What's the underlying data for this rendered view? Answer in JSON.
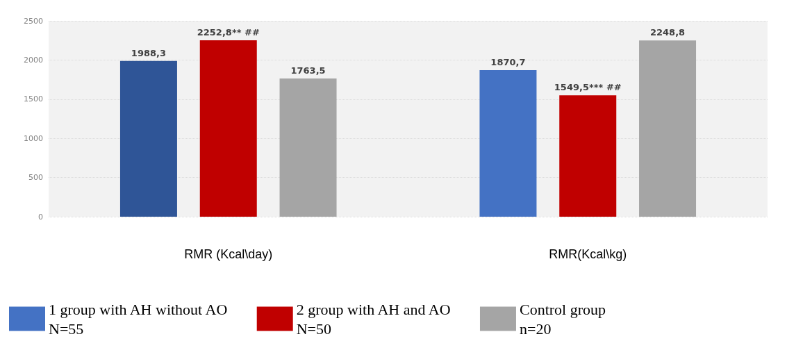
{
  "chart_data": {
    "type": "bar",
    "categories": [
      "RMR (Kcal\\day)",
      "RMR(Kcal\\kg)"
    ],
    "series": [
      {
        "name": "1 group with AH without AO\nN=55",
        "color": "#4472c4",
        "colors": [
          "#2f5597",
          "#4472c4"
        ],
        "values": [
          1988.3,
          1870.7
        ],
        "value_labels": [
          "1988,3",
          "1870,7"
        ]
      },
      {
        "name": "2 group with AH and AO\nN=50",
        "color": "#c00000",
        "values": [
          2252.8,
          1549.5
        ],
        "value_labels": [
          "2252,8** ##",
          "1549,5*** ##"
        ]
      },
      {
        "name": "Control group\nn=20",
        "color": "#a5a5a5",
        "values": [
          1763.5,
          2248.8
        ],
        "value_labels": [
          "1763,5",
          "2248,8"
        ]
      }
    ],
    "ylim": [
      0,
      2500
    ],
    "yticks": [
      0,
      500,
      1000,
      1500,
      2000,
      2500
    ],
    "grid": "y",
    "legend": "bottom"
  }
}
